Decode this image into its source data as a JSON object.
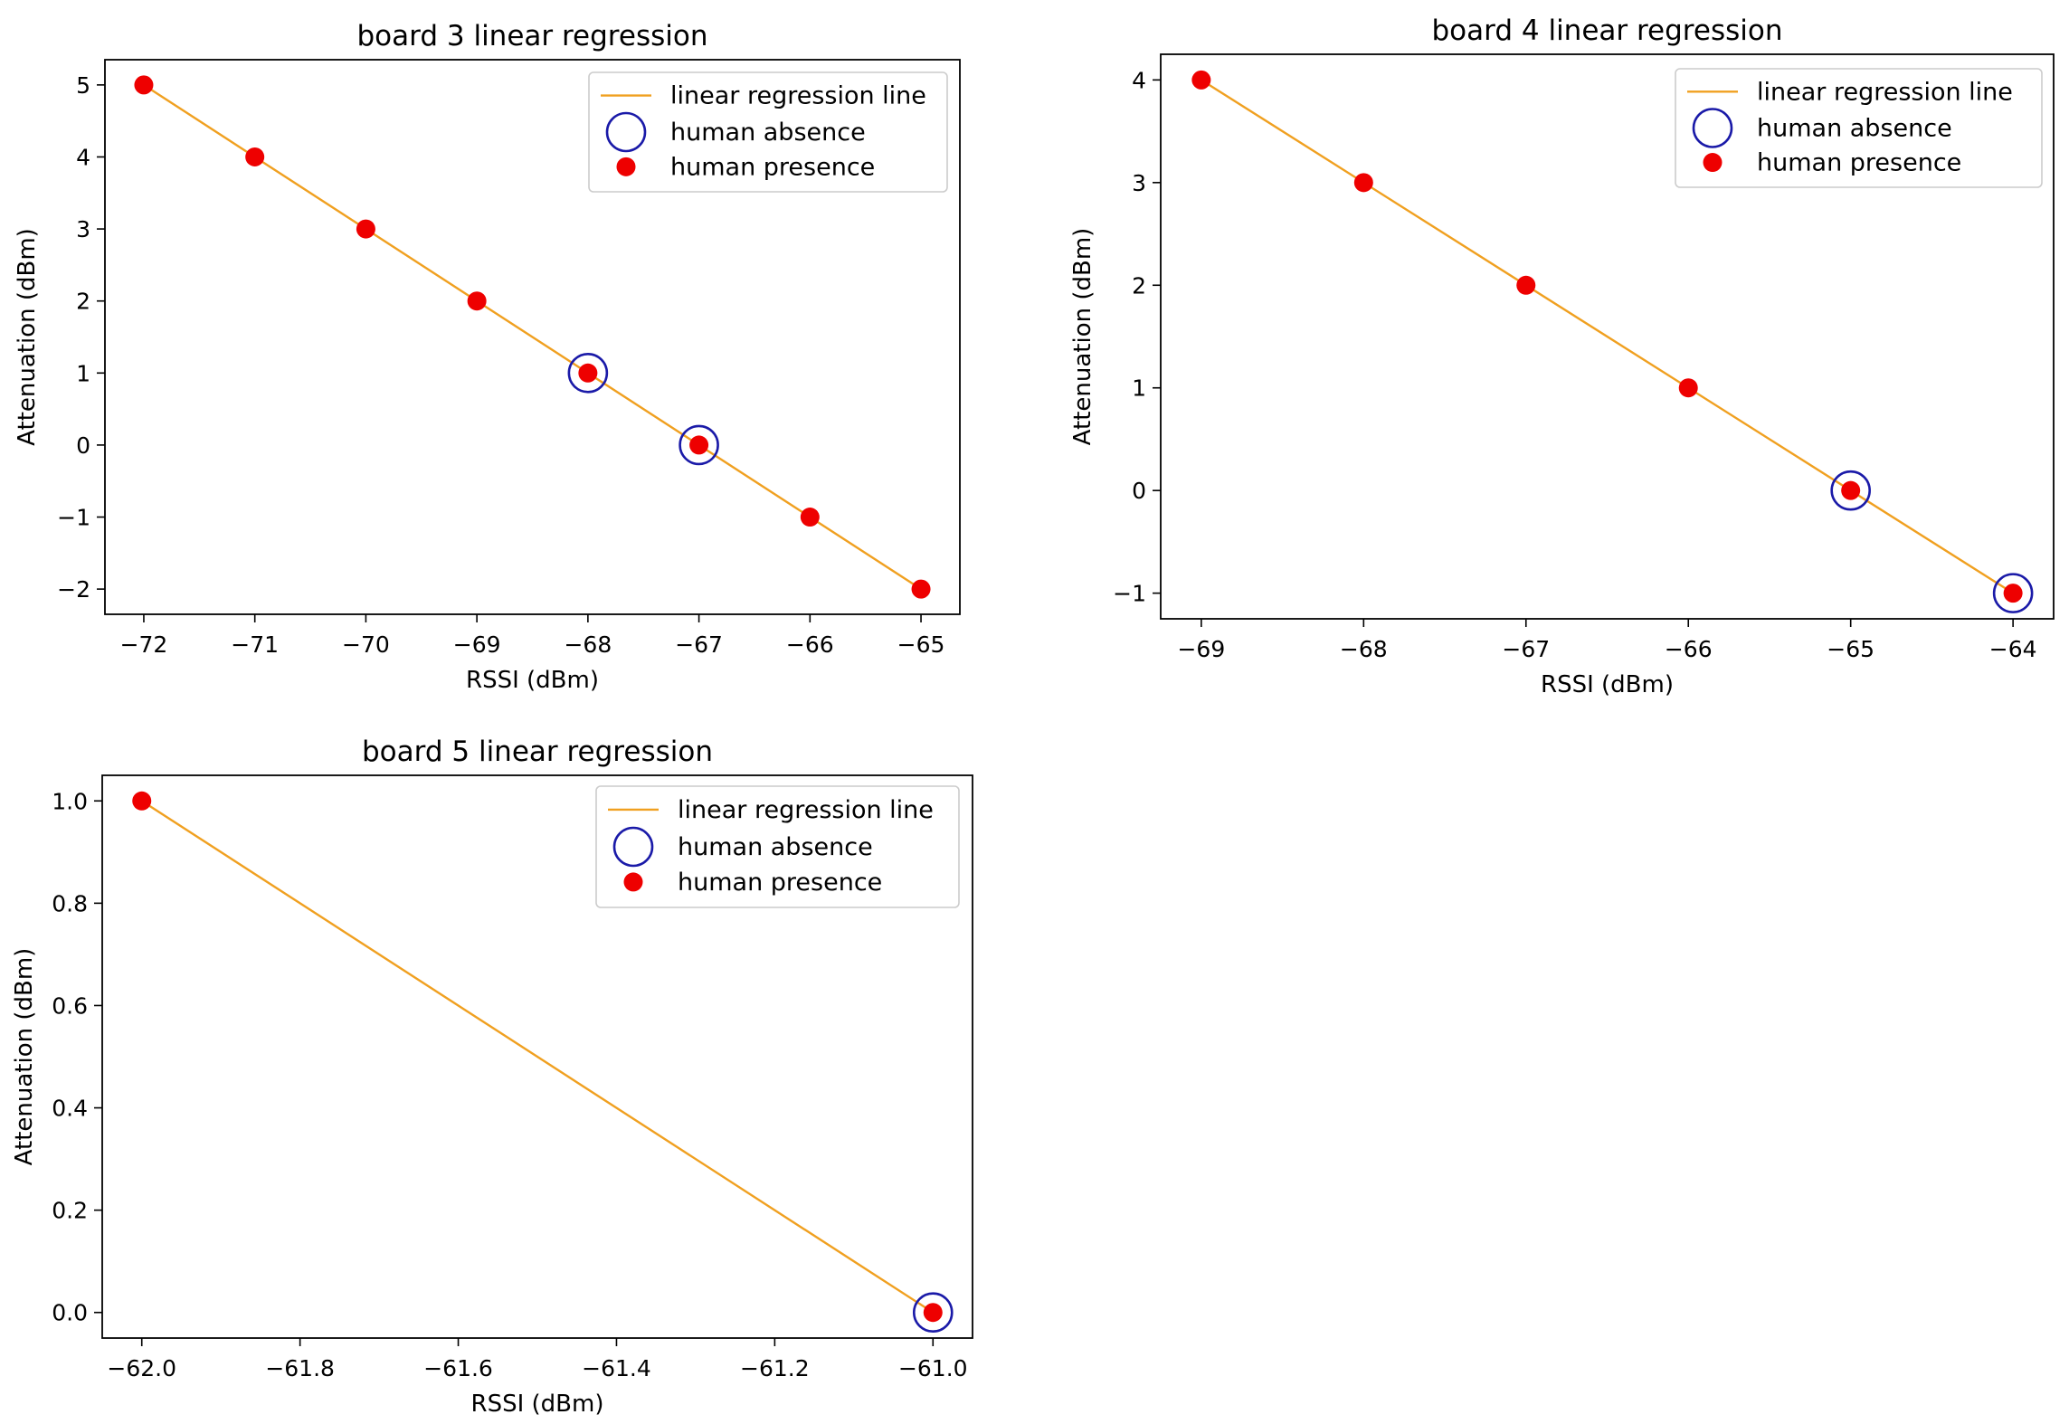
{
  "colors": {
    "regression_line": "#f0a020",
    "absence_marker": "#1a1aa8",
    "presence_marker": "#ee0000",
    "axes": "#000000"
  },
  "chart_data": [
    {
      "type": "scatter",
      "title": "board 3 linear regression",
      "xlabel": "RSSI (dBm)",
      "ylabel": "Attenuation (dBm)",
      "xlim": [
        -72.35,
        -64.65
      ],
      "ylim": [
        -2.35,
        5.35
      ],
      "xticks": [
        -72,
        -71,
        -70,
        -69,
        -68,
        -67,
        -66,
        -65
      ],
      "xtick_labels": [
        "−72",
        "−71",
        "−70",
        "−69",
        "−68",
        "−67",
        "−66",
        "−65"
      ],
      "yticks": [
        -2,
        -1,
        0,
        1,
        2,
        3,
        4,
        5
      ],
      "ytick_labels": [
        "−2",
        "−1",
        "0",
        "1",
        "2",
        "3",
        "4",
        "5"
      ],
      "legend_position": "top-right",
      "legend": [
        "linear regression line",
        "human absence",
        "human presence"
      ],
      "series": [
        {
          "name": "linear regression line",
          "kind": "line",
          "x": [
            -72,
            -65
          ],
          "y": [
            5,
            -2
          ]
        },
        {
          "name": "human absence",
          "kind": "open-circle",
          "x": [
            -68,
            -67
          ],
          "y": [
            1,
            0
          ]
        },
        {
          "name": "human presence",
          "kind": "filled-circle",
          "x": [
            -72,
            -71,
            -70,
            -69,
            -68,
            -67,
            -66,
            -65
          ],
          "y": [
            5,
            4,
            3,
            2,
            1,
            0,
            -1,
            -2
          ]
        }
      ]
    },
    {
      "type": "scatter",
      "title": "board 4 linear regression",
      "xlabel": "RSSI (dBm)",
      "ylabel": "Attenuation (dBm)",
      "xlim": [
        -69.25,
        -63.75
      ],
      "ylim": [
        -1.25,
        4.25
      ],
      "xticks": [
        -69,
        -68,
        -67,
        -66,
        -65,
        -64
      ],
      "xtick_labels": [
        "−69",
        "−68",
        "−67",
        "−66",
        "−65",
        "−64"
      ],
      "yticks": [
        -1,
        0,
        1,
        2,
        3,
        4
      ],
      "ytick_labels": [
        "−1",
        "0",
        "1",
        "2",
        "3",
        "4"
      ],
      "legend_position": "top-right",
      "legend": [
        "linear regression line",
        "human absence",
        "human presence"
      ],
      "series": [
        {
          "name": "linear regression line",
          "kind": "line",
          "x": [
            -69,
            -64
          ],
          "y": [
            4,
            -1
          ]
        },
        {
          "name": "human absence",
          "kind": "open-circle",
          "x": [
            -65,
            -64
          ],
          "y": [
            0,
            -1
          ]
        },
        {
          "name": "human presence",
          "kind": "filled-circle",
          "x": [
            -69,
            -68,
            -67,
            -66,
            -65,
            -64
          ],
          "y": [
            4,
            3,
            2,
            1,
            0,
            -1
          ]
        }
      ]
    },
    {
      "type": "scatter",
      "title": "board 5 linear regression",
      "xlabel": "RSSI (dBm)",
      "ylabel": "Attenuation (dBm)",
      "xlim": [
        -62.05,
        -60.95
      ],
      "ylim": [
        -0.05,
        1.05
      ],
      "xticks": [
        -62.0,
        -61.8,
        -61.6,
        -61.4,
        -61.2,
        -61.0
      ],
      "xtick_labels": [
        "−62.0",
        "−61.8",
        "−61.6",
        "−61.4",
        "−61.2",
        "−61.0"
      ],
      "yticks": [
        0.0,
        0.2,
        0.4,
        0.6,
        0.8,
        1.0
      ],
      "ytick_labels": [
        "0.0",
        "0.2",
        "0.4",
        "0.6",
        "0.8",
        "1.0"
      ],
      "legend_position": "top-right",
      "legend": [
        "linear regression line",
        "human absence",
        "human presence"
      ],
      "series": [
        {
          "name": "linear regression line",
          "kind": "line",
          "x": [
            -62,
            -61
          ],
          "y": [
            1,
            0
          ]
        },
        {
          "name": "human absence",
          "kind": "open-circle",
          "x": [
            -61
          ],
          "y": [
            0
          ]
        },
        {
          "name": "human presence",
          "kind": "filled-circle",
          "x": [
            -62,
            -61
          ],
          "y": [
            1,
            0
          ]
        }
      ]
    }
  ]
}
